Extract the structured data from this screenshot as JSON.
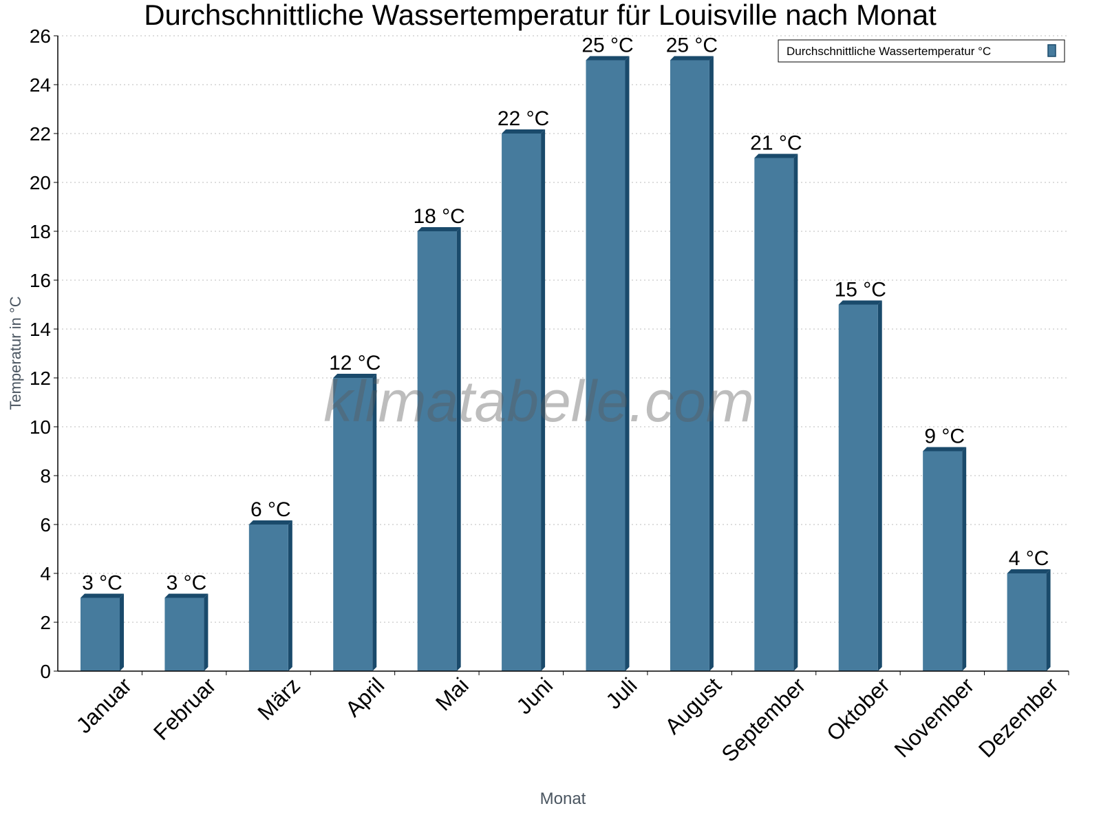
{
  "chart_data": {
    "type": "bar",
    "title": "Durchschnittliche Wassertemperatur für Louisville nach Monat",
    "xlabel": "Monat",
    "ylabel": "Temperatur in °C",
    "categories": [
      "Januar",
      "Februar",
      "März",
      "April",
      "Mai",
      "Juni",
      "Juli",
      "August",
      "September",
      "Oktober",
      "November",
      "Dezember"
    ],
    "series": [
      {
        "name": "Durchschnittliche Wassertemperatur °C",
        "values": [
          3,
          3,
          6,
          12,
          18,
          22,
          25,
          25,
          21,
          15,
          9,
          4
        ],
        "color": "#467b9d",
        "shade_color": "#1a4a6b"
      }
    ],
    "data_labels": [
      "3 °C",
      "3 °C",
      "6 °C",
      "12 °C",
      "18 °C",
      "22 °C",
      "25 °C",
      "25 °C",
      "21 °C",
      "15 °C",
      "9 °C",
      "4 °C"
    ],
    "yticks": [
      0,
      2,
      4,
      6,
      8,
      10,
      12,
      14,
      16,
      18,
      20,
      22,
      24,
      26
    ],
    "ylim": [
      0,
      26
    ],
    "grid": "horizontal dotted",
    "legend_position": "top-right",
    "watermark": "klimatabelle.com"
  }
}
